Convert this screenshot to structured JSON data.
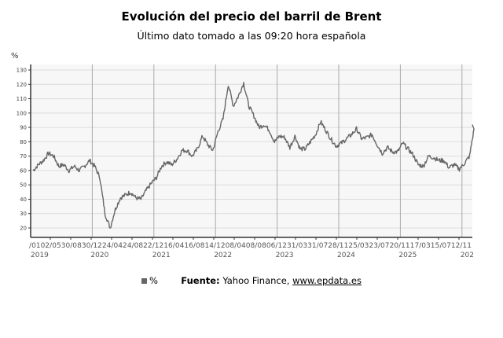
{
  "title": "Evolución del precio del barril de Brent",
  "subtitle": "Último dato tomado a las 09:20 hora española",
  "legend": {
    "label": "%",
    "source_label": "Fuente:",
    "source_text": "Yahoo Finance, ",
    "source_link": "www.epdata.es"
  },
  "chart_data": {
    "type": "line",
    "ylabel": "%",
    "ylim": [
      13,
      133
    ],
    "yticks": [
      20,
      30,
      40,
      50,
      60,
      70,
      80,
      90,
      100,
      110,
      120,
      130
    ],
    "grid": true,
    "line_color": "#666666",
    "xtick_label_text": "/0102/0530/0830/1224/0424/0822/1216/0416/0814/1208/0408/0806/1231/0331/0728/1125/0323/0720/1117/0315/0712/11",
    "year_labels": [
      "2019",
      "2020",
      "2021",
      "2022",
      "2023",
      "2024",
      "2025",
      "202"
    ],
    "x": [
      "2019-01",
      "2019-02",
      "2019-03",
      "2019-04",
      "2019-05",
      "2019-06",
      "2019-07",
      "2019-08",
      "2019-09",
      "2019-10",
      "2019-11",
      "2019-12",
      "2020-01",
      "2020-02",
      "2020-03",
      "2020-04",
      "2020-05",
      "2020-06",
      "2020-07",
      "2020-08",
      "2020-09",
      "2020-10",
      "2020-11",
      "2020-12",
      "2021-01",
      "2021-02",
      "2021-03",
      "2021-04",
      "2021-05",
      "2021-06",
      "2021-07",
      "2021-08",
      "2021-09",
      "2021-10",
      "2021-11",
      "2021-12",
      "2022-01",
      "2022-02",
      "2022-03",
      "2022-04",
      "2022-05",
      "2022-06",
      "2022-07",
      "2022-08",
      "2022-09",
      "2022-10",
      "2022-11",
      "2022-12",
      "2023-01",
      "2023-02",
      "2023-03",
      "2023-04",
      "2023-05",
      "2023-06",
      "2023-07",
      "2023-08",
      "2023-09",
      "2023-10",
      "2023-11",
      "2023-12",
      "2024-01",
      "2024-02",
      "2024-03",
      "2024-04",
      "2024-05",
      "2024-06",
      "2024-07",
      "2024-08",
      "2024-09",
      "2024-10",
      "2024-11",
      "2024-12",
      "2025-01",
      "2025-02",
      "2025-03",
      "2025-04",
      "2025-05",
      "2025-06",
      "2025-07",
      "2025-08",
      "2025-09",
      "2025-10",
      "2025-11",
      "2025-12",
      "2026-01",
      "2026-02",
      "2026-03"
    ],
    "values": [
      60,
      64,
      67,
      72,
      70,
      63,
      64,
      60,
      63,
      60,
      63,
      67,
      63,
      55,
      30,
      20,
      33,
      41,
      43,
      45,
      41,
      40,
      46,
      51,
      55,
      63,
      66,
      64,
      68,
      74,
      74,
      70,
      75,
      84,
      78,
      74,
      87,
      96,
      120,
      105,
      112,
      121,
      105,
      98,
      90,
      92,
      88,
      80,
      84,
      83,
      76,
      84,
      75,
      75,
      80,
      85,
      94,
      88,
      82,
      77,
      79,
      82,
      85,
      89,
      82,
      83,
      85,
      78,
      72,
      76,
      73,
      73,
      79,
      75,
      71,
      64,
      63,
      70,
      69,
      67,
      67,
      62,
      64,
      61,
      65,
      70,
      92
    ]
  }
}
